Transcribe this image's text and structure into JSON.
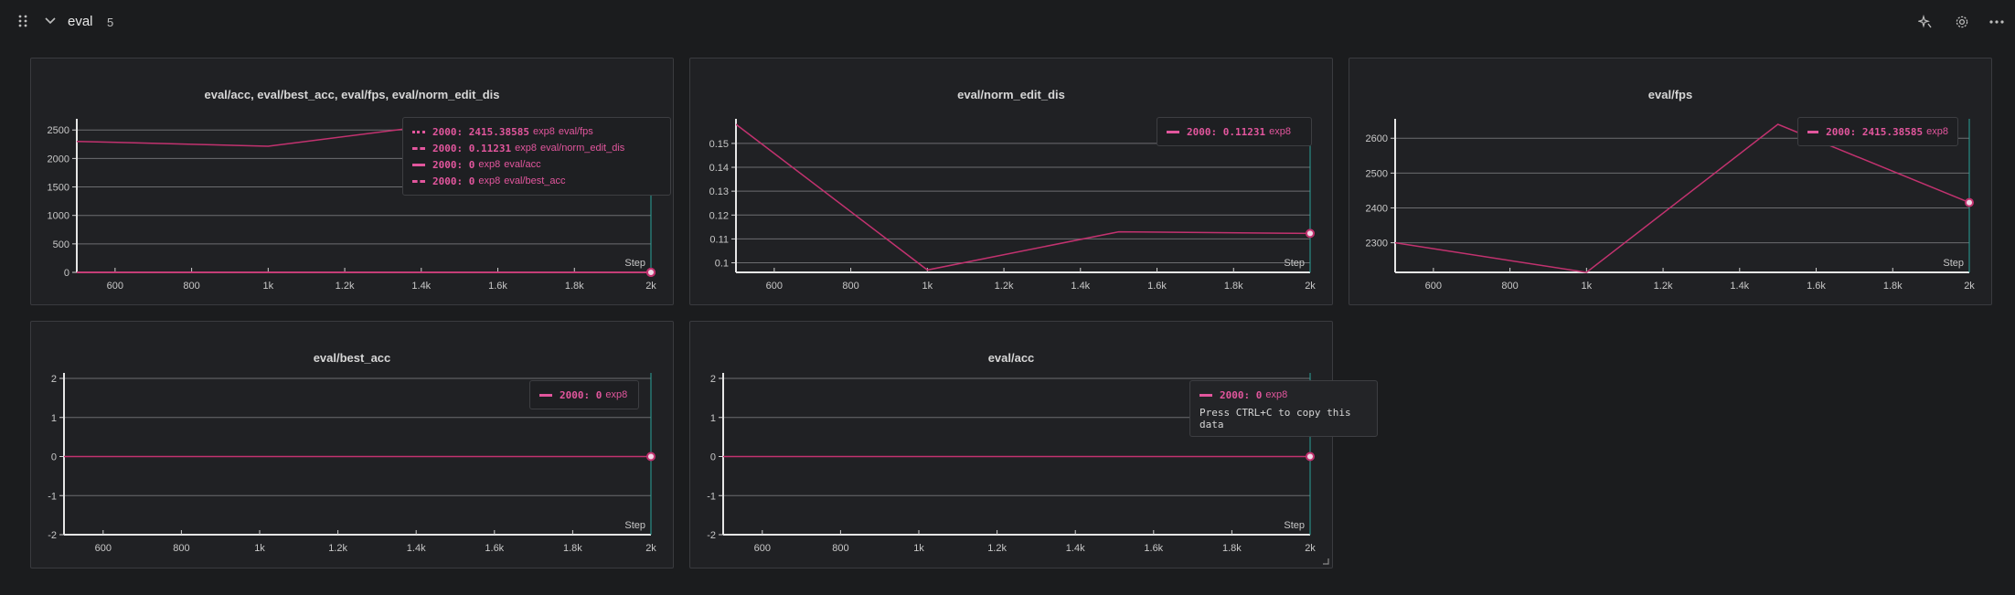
{
  "header": {
    "section_title": "eval",
    "panel_count": "5",
    "icons": [
      "drag-handle-icon",
      "chevron-down-icon",
      "sparkle-icon",
      "gear-icon",
      "more-icon"
    ]
  },
  "colors": {
    "series": "#c2326f",
    "legend_text": "#e2569d",
    "background": "#1b1c1e",
    "panel": "#202124",
    "cursor_line": "#2aa198"
  },
  "charts": [
    {
      "title": "eval/acc, eval/best_acc, eval/fps, eval/norm_edit_dis",
      "legend": [
        {
          "step": "2000",
          "value": "2415.38585",
          "run": "exp8",
          "name": "eval/fps",
          "style": "dotted"
        },
        {
          "step": "2000",
          "value": "0.11231",
          "run": "exp8",
          "name": "eval/norm_edit_dis",
          "style": "dashdot"
        },
        {
          "step": "2000",
          "value": "0",
          "run": "exp8",
          "name": "eval/acc",
          "style": "solid"
        },
        {
          "step": "2000",
          "value": "0",
          "run": "exp8",
          "name": "eval/best_acc",
          "style": "dashed"
        }
      ],
      "step_label": "Step"
    },
    {
      "title": "eval/norm_edit_dis",
      "legend": [
        {
          "step": "2000",
          "value": "0.11231",
          "run": "exp8",
          "name": "",
          "style": "solid"
        }
      ],
      "step_label": "Step"
    },
    {
      "title": "eval/fps",
      "legend": [
        {
          "step": "2000",
          "value": "2415.38585",
          "run": "exp8",
          "name": "",
          "style": "solid"
        }
      ],
      "step_label": "Step"
    },
    {
      "title": "eval/best_acc",
      "legend": [
        {
          "step": "2000",
          "value": "0",
          "run": "exp8",
          "name": "",
          "style": "solid"
        }
      ],
      "step_label": "Step"
    },
    {
      "title": "eval/acc",
      "legend": [
        {
          "step": "2000",
          "value": "0",
          "run": "exp8",
          "name": "",
          "style": "solid"
        }
      ],
      "hint": "Press CTRL+C to copy this data",
      "step_label": "Step"
    }
  ],
  "chart_data": [
    {
      "type": "line",
      "title": "eval/acc, eval/best_acc, eval/fps, eval/norm_edit_dis",
      "xlabel": "Step",
      "xlim": [
        500,
        2000
      ],
      "ylim": [
        0,
        2600
      ],
      "x_ticks": [
        600,
        800,
        1000,
        1200,
        1400,
        1600,
        1800,
        2000
      ],
      "x_tick_labels": [
        "600",
        "800",
        "1k",
        "1.2k",
        "1.4k",
        "1.6k",
        "1.8k",
        "2k"
      ],
      "y_ticks": [
        0,
        500,
        1000,
        1500,
        2000,
        2500
      ],
      "y_tick_labels": [
        "0",
        "500",
        "1000",
        "1500",
        "2000",
        "2500"
      ],
      "series": [
        {
          "name": "eval/fps",
          "x": [
            500,
            1000,
            1500,
            2000
          ],
          "values": [
            2300,
            2215,
            2640,
            2415.38585
          ]
        },
        {
          "name": "eval/norm_edit_dis",
          "x": [
            500,
            1000,
            1500,
            2000
          ],
          "values": [
            0.158,
            0.097,
            0.113,
            0.11231
          ]
        },
        {
          "name": "eval/acc",
          "x": [
            500,
            1000,
            1500,
            2000
          ],
          "values": [
            0,
            0,
            0,
            0
          ]
        },
        {
          "name": "eval/best_acc",
          "x": [
            500,
            1000,
            1500,
            2000
          ],
          "values": [
            0,
            0,
            0,
            0
          ]
        }
      ]
    },
    {
      "type": "line",
      "title": "eval/norm_edit_dis",
      "xlabel": "Step",
      "xlim": [
        500,
        2000
      ],
      "ylim": [
        0.096,
        0.158
      ],
      "x_ticks": [
        600,
        800,
        1000,
        1200,
        1400,
        1600,
        1800,
        2000
      ],
      "x_tick_labels": [
        "600",
        "800",
        "1k",
        "1.2k",
        "1.4k",
        "1.6k",
        "1.8k",
        "2k"
      ],
      "y_ticks": [
        0.1,
        0.11,
        0.12,
        0.13,
        0.14,
        0.15
      ],
      "y_tick_labels": [
        "0.1",
        "0.11",
        "0.12",
        "0.13",
        "0.14",
        "0.15"
      ],
      "series": [
        {
          "name": "exp8",
          "x": [
            500,
            1000,
            1500,
            2000
          ],
          "values": [
            0.158,
            0.097,
            0.113,
            0.11231
          ]
        }
      ]
    },
    {
      "type": "line",
      "title": "eval/fps",
      "xlabel": "Step",
      "xlim": [
        500,
        2000
      ],
      "ylim": [
        2215,
        2640
      ],
      "x_ticks": [
        600,
        800,
        1000,
        1200,
        1400,
        1600,
        1800,
        2000
      ],
      "x_tick_labels": [
        "600",
        "800",
        "1k",
        "1.2k",
        "1.4k",
        "1.6k",
        "1.8k",
        "2k"
      ],
      "y_ticks": [
        2300,
        2400,
        2500,
        2600
      ],
      "y_tick_labels": [
        "2300",
        "2400",
        "2500",
        "2600"
      ],
      "series": [
        {
          "name": "exp8",
          "x": [
            500,
            1000,
            1500,
            2000
          ],
          "values": [
            2300,
            2215,
            2640,
            2415.38585
          ]
        }
      ]
    },
    {
      "type": "line",
      "title": "eval/best_acc",
      "xlabel": "Step",
      "xlim": [
        500,
        2000
      ],
      "ylim": [
        -2,
        2
      ],
      "x_ticks": [
        600,
        800,
        1000,
        1200,
        1400,
        1600,
        1800,
        2000
      ],
      "x_tick_labels": [
        "600",
        "800",
        "1k",
        "1.2k",
        "1.4k",
        "1.6k",
        "1.8k",
        "2k"
      ],
      "y_ticks": [
        -2,
        -1,
        0,
        1,
        2
      ],
      "y_tick_labels": [
        "-2",
        "-1",
        "0",
        "1",
        "2"
      ],
      "series": [
        {
          "name": "exp8",
          "x": [
            500,
            1000,
            1500,
            2000
          ],
          "values": [
            0,
            0,
            0,
            0
          ]
        }
      ]
    },
    {
      "type": "line",
      "title": "eval/acc",
      "xlabel": "Step",
      "xlim": [
        500,
        2000
      ],
      "ylim": [
        -2,
        2
      ],
      "x_ticks": [
        600,
        800,
        1000,
        1200,
        1400,
        1600,
        1800,
        2000
      ],
      "x_tick_labels": [
        "600",
        "800",
        "1k",
        "1.2k",
        "1.4k",
        "1.6k",
        "1.8k",
        "2k"
      ],
      "y_ticks": [
        -2,
        -1,
        0,
        1,
        2
      ],
      "y_tick_labels": [
        "-2",
        "-1",
        "0",
        "1",
        "2"
      ],
      "series": [
        {
          "name": "exp8",
          "x": [
            500,
            1000,
            1500,
            2000
          ],
          "values": [
            0,
            0,
            0,
            0
          ]
        }
      ]
    }
  ]
}
